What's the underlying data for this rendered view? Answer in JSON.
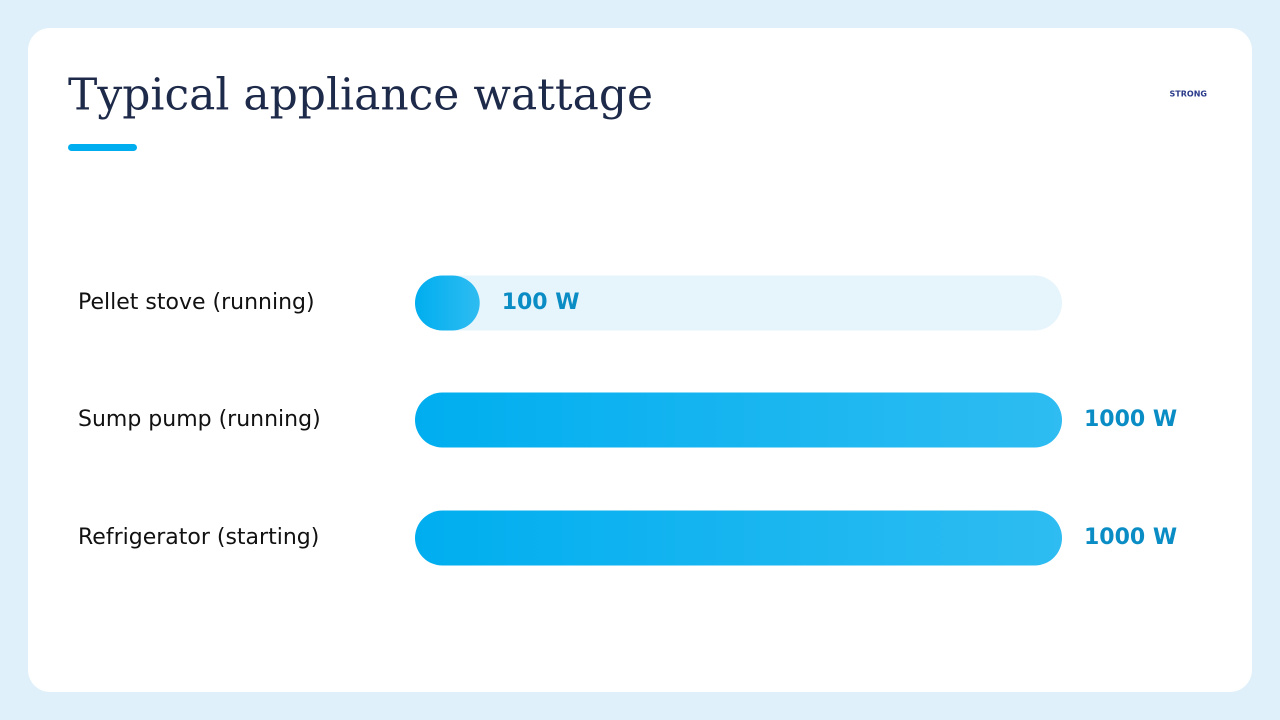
{
  "logo": "STRONG",
  "chart_data": {
    "type": "bar",
    "orientation": "horizontal",
    "title": "Typical appliance wattage",
    "categories": [
      "Pellet stove (running)",
      "Sump pump (running)",
      "Refrigerator (starting)"
    ],
    "values": [
      100,
      1000,
      1000
    ],
    "value_labels": [
      "100 W",
      "1000 W",
      "1000 W"
    ],
    "color": "#00aeef",
    "xlim": [
      0,
      1000
    ]
  }
}
